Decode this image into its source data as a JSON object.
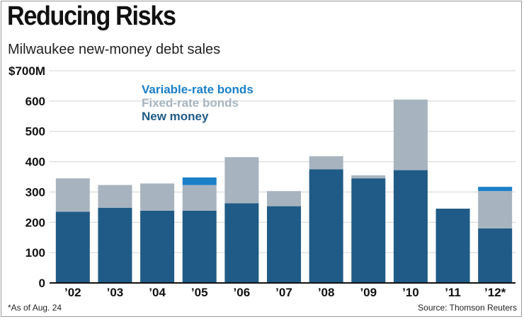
{
  "header": {
    "title": "Reducing Risks",
    "subtitle": "Milwaukee new-money debt sales"
  },
  "footer": {
    "footnote": "*As of Aug. 24",
    "source": "Source: Thomson Reuters"
  },
  "colors": {
    "variable": "#1a7fc7",
    "fixed": "#a7b4bf",
    "new_money": "#1f5b86",
    "grid": "#cfd3d6",
    "axis": "#111111"
  },
  "chart_data": {
    "type": "bar",
    "stacked": true,
    "title": "Reducing Risks",
    "subtitle": "Milwaukee new-money debt sales",
    "xlabel": "",
    "ylabel": "",
    "ylim": [
      0,
      700
    ],
    "yticks": [
      0,
      100,
      200,
      300,
      400,
      500,
      600,
      700
    ],
    "ytick_labels": [
      "0",
      "100",
      "200",
      "300",
      "400",
      "500",
      "600",
      "$700M"
    ],
    "grid": true,
    "categories": [
      "’02",
      "’03",
      "’04",
      "’05",
      "’06",
      "’07",
      "’08",
      "’09",
      "’10",
      "’11",
      "’12*"
    ],
    "series": [
      {
        "name": "New money",
        "color": "#1f5b86",
        "values": [
          235,
          248,
          238,
          238,
          263,
          253,
          375,
          345,
          372,
          245,
          180
        ]
      },
      {
        "name": "Fixed-rate bonds",
        "color": "#a7b4bf",
        "values": [
          110,
          75,
          90,
          85,
          152,
          50,
          43,
          10,
          233,
          0,
          123
        ]
      },
      {
        "name": "Variable-rate bonds",
        "color": "#1a7fc7",
        "values": [
          0,
          0,
          0,
          25,
          0,
          0,
          0,
          0,
          0,
          0,
          14
        ]
      }
    ],
    "legend": {
      "placement": "top-left",
      "entries": [
        {
          "label": "Variable-rate bonds",
          "color": "#1a7fc7"
        },
        {
          "label": "Fixed-rate bonds",
          "color": "#a7b4bf"
        },
        {
          "label": "New money",
          "color": "#1f5b86"
        }
      ]
    }
  }
}
